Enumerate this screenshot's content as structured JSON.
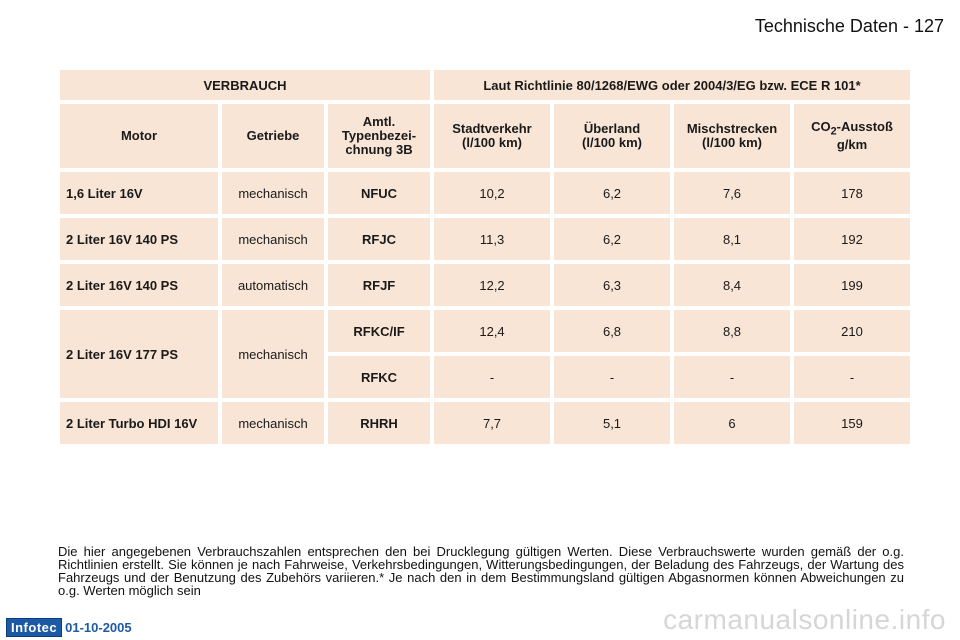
{
  "header": {
    "page_title": "Technische Daten - 127"
  },
  "table": {
    "title_left": "VERBRAUCH",
    "title_right": "Laut Richtlinie 80/1268/EWG oder 2004/3/EG bzw. ECE R 101*",
    "columns": {
      "motor": "Motor",
      "getriebe": "Getriebe",
      "typ_1": "Amtl.",
      "typ_2": "Typenbezei-",
      "typ_3": "chnung 3B",
      "stadt_1": "Stadtverkehr",
      "stadt_2": "(l/100 km)",
      "ueberland_1": "Überland",
      "ueberland_2": "(l/100 km)",
      "misch_1": "Mischstrecken",
      "misch_2": "(l/100 km)",
      "co2_pre": "CO",
      "co2_sub": "2",
      "co2_post": "-Ausstoß",
      "co2_unit": "g/km"
    },
    "rows": [
      {
        "motor": "1,6 Liter 16V",
        "getriebe": "mechanisch",
        "typ": "NFUC",
        "stadt": "10,2",
        "ueberland": "6,2",
        "misch": "7,6",
        "co2": "178"
      },
      {
        "motor": "2 Liter 16V 140 PS",
        "getriebe": "mechanisch",
        "typ": "RFJC",
        "stadt": "11,3",
        "ueberland": "6,2",
        "misch": "8,1",
        "co2": "192"
      },
      {
        "motor": "2 Liter 16V 140 PS",
        "getriebe": "automatisch",
        "typ": "RFJF",
        "stadt": "12,2",
        "ueberland": "6,3",
        "misch": "8,4",
        "co2": "199"
      },
      {
        "motor": "2 Liter 16V 177 PS",
        "getriebe": "mechanisch",
        "typ": "RFKC/IF",
        "stadt": "12,4",
        "ueberland": "6,8",
        "misch": "8,8",
        "co2": "210"
      },
      {
        "typ": "RFKC",
        "stadt": "-",
        "ueberland": "-",
        "misch": "-",
        "co2": "-"
      },
      {
        "motor": "2 Liter Turbo HDI 16V",
        "getriebe": "mechanisch",
        "typ": "RHRH",
        "stadt": "7,7",
        "ueberland": "5,1",
        "misch": "6",
        "co2": "159"
      }
    ]
  },
  "footnote": "Die hier angegebenen Verbrauchszahlen entsprechen den bei Drucklegung gültigen Werten. Diese Verbrauchswerte wurden gemäß der o.g. Richtlinien erstellt. Sie können je nach Fahrweise, Verkehrsbedingungen, Witterungsbedingungen, der Beladung des Fahrzeugs, der Wartung des Fahrzeugs und der Benutzung des Zubehörs variieren.* Je nach den in dem Bestimmungsland gültigen Abgasnormen können Abweichungen zu o.g. Werten möglich sein",
  "footer": {
    "logo": "Infotec",
    "date": "01-10-2005"
  },
  "watermark": "carmanualsonline.info"
}
